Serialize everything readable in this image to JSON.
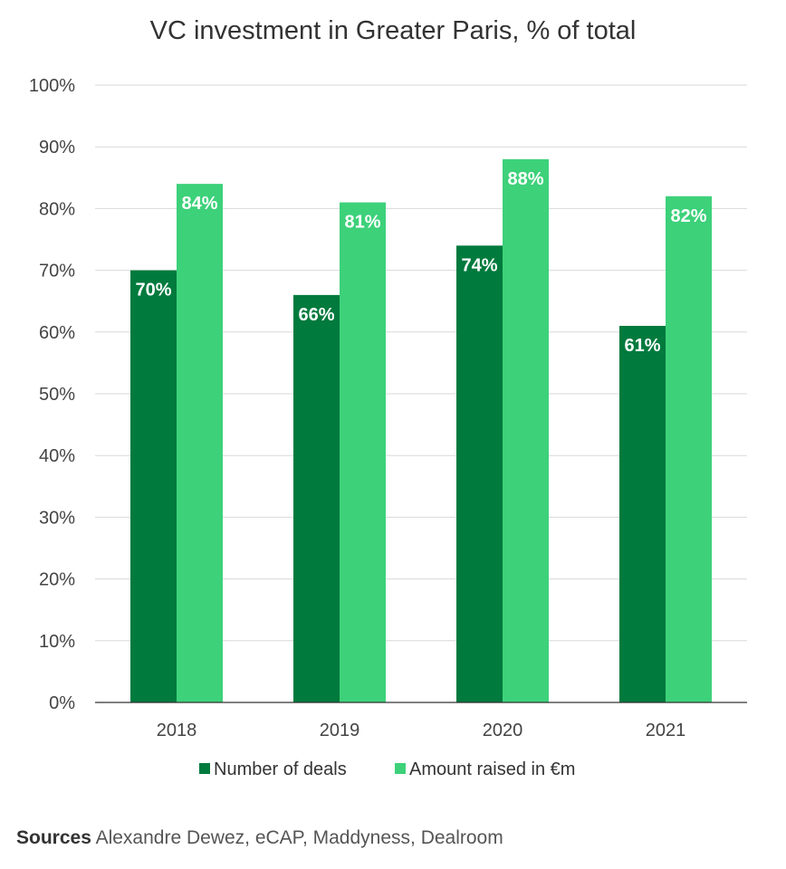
{
  "chart_data": {
    "type": "bar",
    "title": "VC investment in Greater Paris, % of total",
    "categories": [
      "2018",
      "2019",
      "2020",
      "2021"
    ],
    "series": [
      {
        "name": "Number of deals",
        "values": [
          70,
          66,
          74,
          61
        ],
        "labels": [
          "70%",
          "66%",
          "74%",
          "61%"
        ],
        "color": "#007a3d"
      },
      {
        "name": "Amount raised in €m",
        "values": [
          84,
          81,
          88,
          82
        ],
        "labels": [
          "84%",
          "81%",
          "88%",
          "82%"
        ],
        "color": "#3dd17a"
      }
    ],
    "ylim": [
      0,
      100
    ],
    "yticks": [
      0,
      10,
      20,
      30,
      40,
      50,
      60,
      70,
      80,
      90,
      100
    ],
    "ytick_labels": [
      "0%",
      "10%",
      "20%",
      "30%",
      "40%",
      "50%",
      "60%",
      "70%",
      "80%",
      "90%",
      "100%"
    ],
    "grid": true,
    "legend_position": "bottom"
  },
  "sources": {
    "label": "Sources",
    "text": "Alexandre Dewez, eCAP, Maddyness, Dealroom"
  },
  "colors": {
    "gridline": "#d9d9d9",
    "axis": "#333333",
    "label_text": "#ffffff"
  }
}
